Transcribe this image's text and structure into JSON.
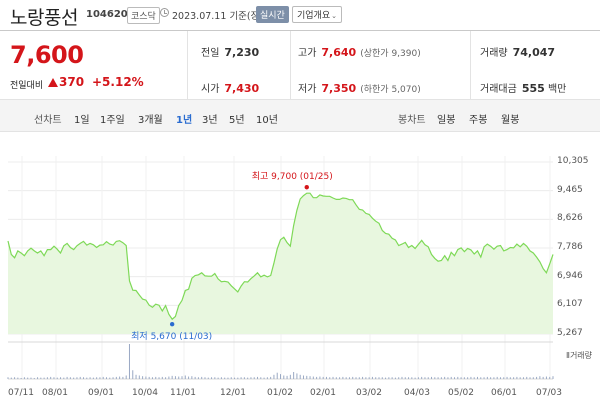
{
  "header": {
    "name": "노랑풍선",
    "code": "104620",
    "market": "코스닥",
    "date": "2023.07.11",
    "basis": "기준(장마감)",
    "realtime_label": "실시간",
    "overview_label": "기업개요",
    "overview_chevron": "⌄"
  },
  "quote": {
    "price": "7,600",
    "change_label": "전일대비",
    "change_amount": "370",
    "change_rate": "+5.12%",
    "prev_close_label": "전일",
    "prev_close": "7,230",
    "open_label": "시가",
    "open": "7,430",
    "high_label": "고가",
    "high": "7,640",
    "upper_limit_label": "(상한가",
    "upper_limit": "9,390)",
    "low_label": "저가",
    "low": "7,350",
    "lower_limit_label": "(하한가",
    "lower_limit": "5,070)",
    "volume_label": "거래량",
    "volume": "74,047",
    "amount_label": "거래대금",
    "amount": "555",
    "amount_unit": "백만",
    "colors": {
      "up": "#d4151a",
      "accent": "#2a6cd0"
    }
  },
  "periodbar": {
    "line_label": "선차트",
    "periods": [
      "1일",
      "1주일",
      "3개월",
      "1년",
      "3년",
      "5년",
      "10년"
    ],
    "active_period": "1년",
    "candle_label": "봉차트",
    "candles": [
      "일봉",
      "주봉",
      "월봉"
    ]
  },
  "chart_data": {
    "type": "area",
    "y_ticks": [
      "10,305",
      "9,465",
      "8,626",
      "7,786",
      "6,946",
      "6,107",
      "5,267"
    ],
    "ylim": [
      5267,
      10305
    ],
    "x_ticks": [
      "07/11",
      "08/01",
      "09/01",
      "10/04",
      "11/01",
      "12/01",
      "01/02",
      "02/01",
      "03/02",
      "04/03",
      "05/02",
      "06/01",
      "07/03"
    ],
    "series": [
      {
        "values": [
          7990,
          7600,
          7500,
          7700,
          7640,
          7560,
          7700,
          7780,
          7700,
          7640,
          7700,
          7560,
          7740,
          7740,
          7840,
          7750,
          7640,
          7850,
          7920,
          7800,
          7740,
          7850,
          7920,
          7980,
          7870,
          7920,
          7880,
          7800,
          7870,
          7880,
          7970,
          7900,
          7870,
          7980,
          8000,
          7940,
          7860,
          6820,
          6550,
          6540,
          6410,
          6290,
          6260,
          6110,
          6050,
          6140,
          6110,
          5940,
          6100,
          5840,
          5700,
          5780,
          6100,
          6250,
          6540,
          6580,
          6900,
          6980,
          7000,
          7060,
          6970,
          6960,
          6960,
          7040,
          6880,
          6800,
          6810,
          6790,
          6680,
          6590,
          6500,
          6670,
          6800,
          6790,
          6890,
          6970,
          7060,
          6940,
          6990,
          6940,
          6980,
          7340,
          7760,
          8030,
          8100,
          7940,
          7840,
          8440,
          8890,
          9220,
          9320,
          9390,
          9390,
          9260,
          9260,
          9340,
          9310,
          9300,
          9300,
          9250,
          9210,
          9210,
          9250,
          9240,
          9200,
          9200,
          9050,
          8920,
          8900,
          8800,
          8770,
          8660,
          8570,
          8510,
          8300,
          8210,
          8190,
          8070,
          8020,
          7860,
          7900,
          7950,
          7800,
          7860,
          7770,
          7890,
          8010,
          7880,
          7820,
          7600,
          7480,
          7400,
          7420,
          7560,
          7420,
          7660,
          7560,
          7740,
          7790,
          7680,
          7770,
          7730,
          7610,
          7700,
          7520,
          7820,
          7900,
          7840,
          7750,
          7840,
          7860,
          7700,
          7740,
          7800,
          7790,
          7900,
          7820,
          7920,
          7840,
          7700,
          7640,
          7520,
          7380,
          7180,
          7060,
          7320,
          7600
        ]
      }
    ],
    "volume_values": [
      0.05,
      0.04,
      0.05,
      0.04,
      0.03,
      0.05,
      0.04,
      0.04,
      0.03,
      0.05,
      0.04,
      0.04,
      0.05,
      0.06,
      0.05,
      0.04,
      0.05,
      0.04,
      0.06,
      0.05,
      0.04,
      0.05,
      0.06,
      0.05,
      0.04,
      0.05,
      0.04,
      0.05,
      0.05,
      0.06,
      0.05,
      0.04,
      0.05,
      0.06,
      0.07,
      0.06,
      0.1,
      1.0,
      0.25,
      0.12,
      0.1,
      0.08,
      0.07,
      0.06,
      0.05,
      0.06,
      0.05,
      0.06,
      0.05,
      0.07,
      0.09,
      0.08,
      0.07,
      0.08,
      0.1,
      0.07,
      0.08,
      0.06,
      0.05,
      0.06,
      0.05,
      0.04,
      0.05,
      0.05,
      0.04,
      0.05,
      0.04,
      0.04,
      0.05,
      0.04,
      0.04,
      0.05,
      0.05,
      0.04,
      0.05,
      0.05,
      0.06,
      0.05,
      0.04,
      0.05,
      0.06,
      0.12,
      0.18,
      0.14,
      0.1,
      0.09,
      0.12,
      0.2,
      0.16,
      0.12,
      0.1,
      0.09,
      0.08,
      0.07,
      0.06,
      0.07,
      0.06,
      0.06,
      0.05,
      0.06,
      0.05,
      0.05,
      0.06,
      0.05,
      0.05,
      0.06,
      0.05,
      0.05,
      0.06,
      0.05,
      0.05,
      0.06,
      0.05,
      0.05,
      0.05,
      0.04,
      0.05,
      0.05,
      0.04,
      0.05,
      0.06,
      0.05,
      0.05,
      0.05,
      0.04,
      0.05,
      0.06,
      0.05,
      0.05,
      0.06,
      0.05,
      0.05,
      0.05,
      0.06,
      0.05,
      0.06,
      0.05,
      0.06,
      0.05,
      0.05,
      0.05,
      0.06,
      0.05,
      0.06,
      0.05,
      0.05,
      0.06,
      0.05,
      0.05,
      0.06,
      0.05,
      0.05,
      0.06,
      0.05,
      0.05,
      0.06,
      0.05,
      0.05,
      0.06,
      0.05,
      0.05,
      0.06,
      0.08,
      0.06,
      0.07,
      0.06,
      0.08
    ],
    "volume_label": "거래량",
    "high_annotation": "최고 9,700 (01/25)",
    "low_annotation": "최저 5,670 (11/03)",
    "grid": true,
    "line_color": "#7ed957",
    "fill_color": "#e8f7df"
  }
}
